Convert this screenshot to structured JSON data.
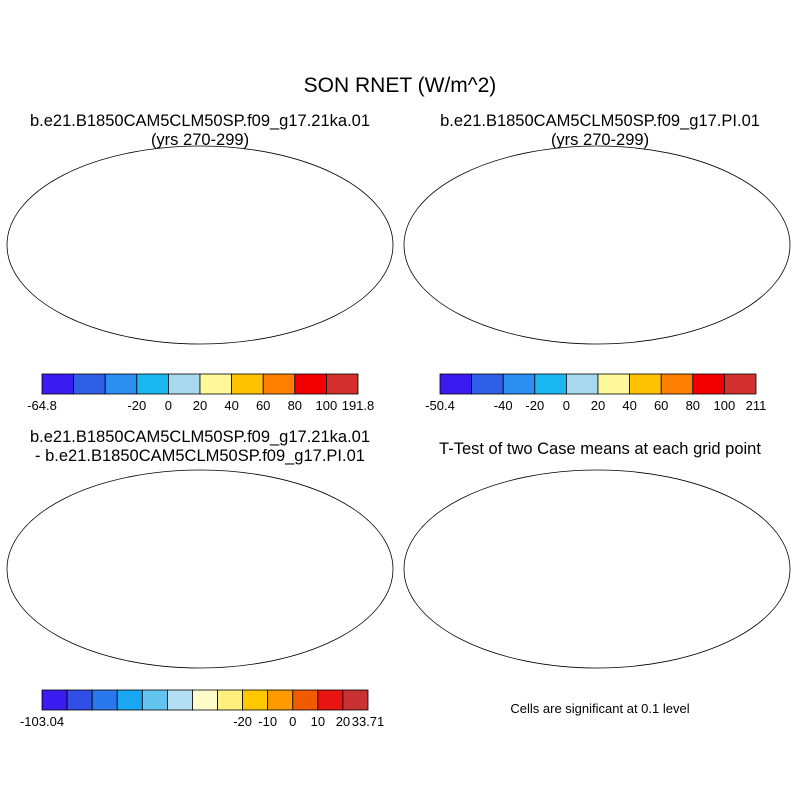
{
  "title": "SON RNET (W/m^2)",
  "panels": [
    {
      "id": "case1",
      "title_line1": "b.e21.B1850CAM5CLM50SP.f09_g17.21ka.01",
      "title_line2": "(yrs 270-299)",
      "colorbar": {
        "labels": [
          "-64.8",
          "-20",
          "0",
          "20",
          "40",
          "60",
          "80",
          "100",
          "191.8"
        ],
        "colors": [
          "#3b1cf0",
          "#2f5fe6",
          "#2a8ff0",
          "#1ab8f0",
          "#a8d8f0",
          "#fff89a",
          "#ffc200",
          "#ff7f00",
          "#f20000",
          "#d43030"
        ]
      }
    },
    {
      "id": "case2",
      "title_line1": "b.e21.B1850CAM5CLM50SP.f09_g17.PI.01",
      "title_line2": "(yrs 270-299)",
      "colorbar": {
        "labels": [
          "-50.4",
          "-40",
          "-20",
          "0",
          "20",
          "40",
          "60",
          "80",
          "100",
          "211"
        ],
        "colors": [
          "#3b1cf0",
          "#2f5fe6",
          "#2a8ff0",
          "#1ab8f0",
          "#a8d8f0",
          "#fff89a",
          "#ffc200",
          "#ff7f00",
          "#f20000",
          "#d43030"
        ]
      }
    },
    {
      "id": "diff",
      "title_line1": "b.e21.B1850CAM5CLM50SP.f09_g17.21ka.01",
      "title_line2": "- b.e21.B1850CAM5CLM50SP.f09_g17.PI.01",
      "colorbar": {
        "labels": [
          "-103.04",
          "-20",
          "-10",
          "0",
          "10",
          "20",
          "33.71"
        ],
        "colors": [
          "#3b1cf0",
          "#2f4ee6",
          "#2a78ee",
          "#1aa6f0",
          "#64c4f0",
          "#b4e0f4",
          "#fffccc",
          "#fff080",
          "#ffc800",
          "#ff9a00",
          "#f25a00",
          "#e81414",
          "#c83232"
        ]
      }
    },
    {
      "id": "ttest",
      "title_line1": "T-Test of two Case means at each grid point",
      "title_line2": "",
      "note": "Cells are significant at 0.1 level"
    }
  ]
}
